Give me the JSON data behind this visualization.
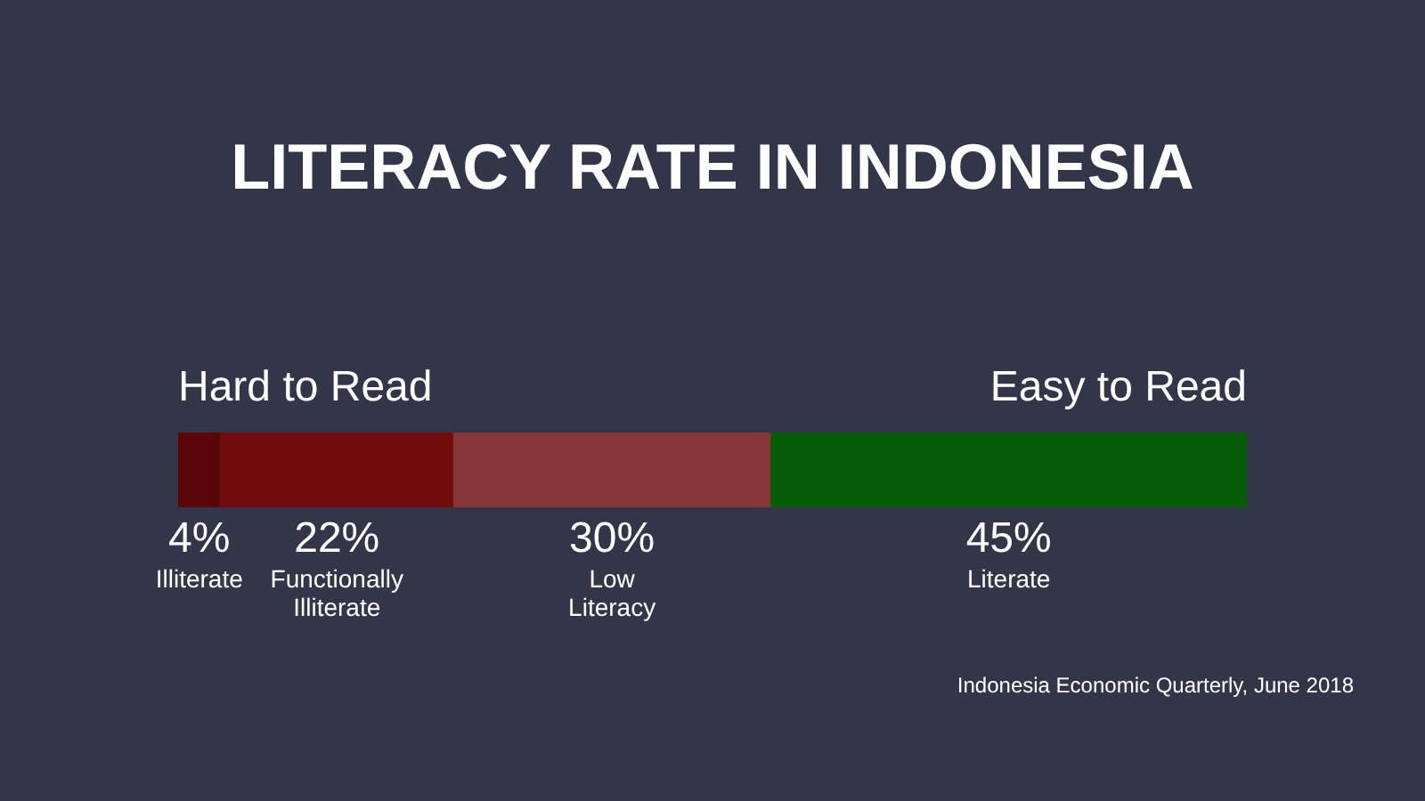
{
  "chart_data": {
    "type": "bar",
    "title": "LITERACY RATE IN INDONESIA",
    "orientation": "horizontal",
    "stacked": true,
    "categories": [
      null
    ],
    "series": [
      {
        "name": "Illiterate",
        "color": "#5a0606",
        "values": [
          4
        ],
        "value_labels": [
          "4%"
        ]
      },
      {
        "name": "Functionally Illiterate",
        "color": "#730d0d",
        "values": [
          22
        ],
        "value_labels": [
          "22%"
        ]
      },
      {
        "name": "Low Literacy",
        "color": "#873535",
        "values": [
          30
        ],
        "value_labels": [
          "30%"
        ]
      },
      {
        "name": "Literate",
        "color": "#075c07",
        "values": [
          45
        ],
        "value_labels": [
          "45%"
        ]
      }
    ],
    "annotations": [
      "Hard to Read",
      "Easy to Read",
      "Indonesia Economic Quarterly, June 2018"
    ]
  }
}
